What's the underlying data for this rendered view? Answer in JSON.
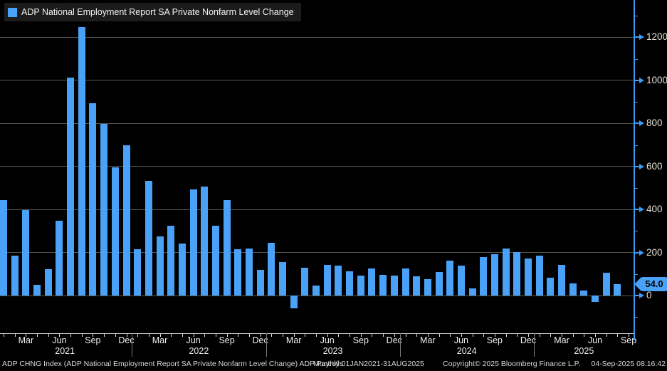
{
  "legend": {
    "label": "ADP National Employment Report SA Private Nonfarm Level Change"
  },
  "footer": {
    "left": "ADP CHNG Index (ADP National Employment Report SA Private Nonfarm Level Change) ADP Payrolls",
    "periodicity": "Monthly 01JAN2021-31AUG2025",
    "copyright": "Copyright© 2025 Bloomberg Finance L.P.",
    "datetime": "04-Sep-2025 08:16:42"
  },
  "colors": {
    "background": "#000000",
    "bar": "#4aa2f8",
    "axis": "#3e9bf4",
    "gridline": "#56564f",
    "y_label": "#e4e1d3",
    "x_label": "#f0f0f0",
    "footer_text": "#d8d8d8",
    "badge_text": "#000000"
  },
  "chart_data": {
    "type": "bar",
    "title": "ADP National Employment Report SA Private Nonfarm Level Change",
    "ylabel": "",
    "xlabel": "",
    "ylim": [
      -170,
      1390
    ],
    "grid": "horizontal",
    "legend_position": "top-left",
    "y_ticks": [
      0,
      200,
      400,
      600,
      800,
      1000,
      1200
    ],
    "y_minor_step": 100,
    "x_tick_labels": [
      "Mar",
      "Jun",
      "Sep",
      "Dec"
    ],
    "years": [
      "2021",
      "2022",
      "2023",
      "2024",
      "2025"
    ],
    "last_value": 54.0,
    "last_value_label": "54.0",
    "categories": [
      "Jan 2021",
      "Feb 2021",
      "Mar 2021",
      "Apr 2021",
      "May 2021",
      "Jun 2021",
      "Jul 2021",
      "Aug 2021",
      "Sep 2021",
      "Oct 2021",
      "Nov 2021",
      "Dec 2021",
      "Jan 2022",
      "Feb 2022",
      "Mar 2022",
      "Apr 2022",
      "May 2022",
      "Jun 2022",
      "Jul 2022",
      "Aug 2022",
      "Sep 2022",
      "Oct 2022",
      "Nov 2022",
      "Dec 2022",
      "Jan 2023",
      "Feb 2023",
      "Mar 2023",
      "Apr 2023",
      "May 2023",
      "Jun 2023",
      "Jul 2023",
      "Aug 2023",
      "Sep 2023",
      "Oct 2023",
      "Nov 2023",
      "Dec 2023",
      "Jan 2024",
      "Feb 2024",
      "Mar 2024",
      "Apr 2024",
      "May 2024",
      "Jun 2024",
      "Jul 2024",
      "Aug 2024",
      "Sep 2024",
      "Oct 2024",
      "Nov 2024",
      "Dec 2024",
      "Jan 2025",
      "Feb 2025",
      "Mar 2025",
      "Apr 2025",
      "May 2025",
      "Jun 2025",
      "Jul 2025",
      "Aug 2025"
    ],
    "values": [
      445,
      187,
      398,
      50,
      122,
      347,
      1014,
      1247,
      893,
      796,
      595,
      700,
      215,
      533,
      276,
      323,
      243,
      494,
      505,
      323,
      443,
      215,
      218,
      119,
      245,
      157,
      -60,
      129,
      46,
      141,
      139,
      113,
      92,
      126,
      95,
      93,
      127,
      89,
      77,
      108,
      163,
      138,
      33,
      179,
      192,
      217,
      202,
      171,
      184,
      83,
      143,
      57,
      24,
      -31,
      105,
      54
    ]
  }
}
